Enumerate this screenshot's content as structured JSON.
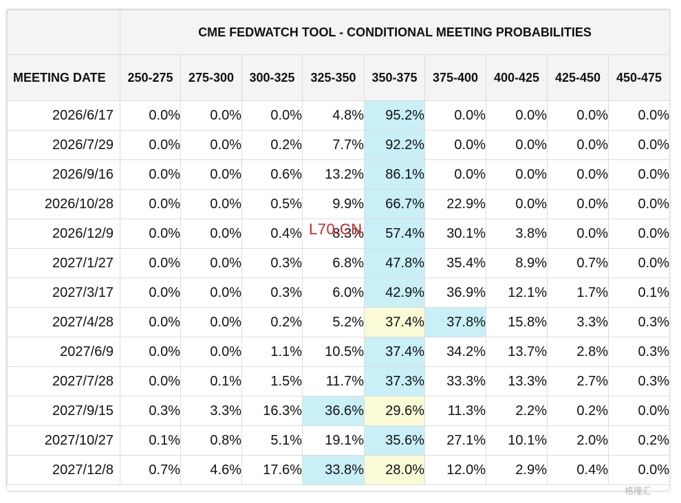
{
  "chart_data": {
    "type": "table",
    "title": "CME FEDWATCH TOOL - CONDITIONAL MEETING PROBABILITIES",
    "row_header_label": "MEETING DATE",
    "columns": [
      "250-275",
      "275-300",
      "300-325",
      "325-350",
      "350-375",
      "375-400",
      "400-425",
      "425-450",
      "450-475"
    ],
    "rows": [
      {
        "date": "2026/6/17",
        "values": [
          "0.0%",
          "0.0%",
          "0.0%",
          "4.8%",
          "95.2%",
          "0.0%",
          "0.0%",
          "0.0%",
          "0.0%"
        ],
        "highlight": {
          "4": "blue"
        }
      },
      {
        "date": "2026/7/29",
        "values": [
          "0.0%",
          "0.0%",
          "0.2%",
          "7.7%",
          "92.2%",
          "0.0%",
          "0.0%",
          "0.0%",
          "0.0%"
        ],
        "highlight": {
          "4": "blue"
        }
      },
      {
        "date": "2026/9/16",
        "values": [
          "0.0%",
          "0.0%",
          "0.6%",
          "13.2%",
          "86.1%",
          "0.0%",
          "0.0%",
          "0.0%",
          "0.0%"
        ],
        "highlight": {
          "4": "blue"
        }
      },
      {
        "date": "2026/10/28",
        "values": [
          "0.0%",
          "0.0%",
          "0.5%",
          "9.9%",
          "66.7%",
          "22.9%",
          "0.0%",
          "0.0%",
          "0.0%"
        ],
        "highlight": {
          "4": "blue"
        }
      },
      {
        "date": "2026/12/9",
        "values": [
          "0.0%",
          "0.0%",
          "0.4%",
          "8.3%",
          "57.4%",
          "30.1%",
          "3.8%",
          "0.0%",
          "0.0%"
        ],
        "highlight": {
          "4": "blue"
        }
      },
      {
        "date": "2027/1/27",
        "values": [
          "0.0%",
          "0.0%",
          "0.3%",
          "6.8%",
          "47.8%",
          "35.4%",
          "8.9%",
          "0.7%",
          "0.0%"
        ],
        "highlight": {
          "4": "blue"
        }
      },
      {
        "date": "2027/3/17",
        "values": [
          "0.0%",
          "0.0%",
          "0.3%",
          "6.0%",
          "42.9%",
          "36.9%",
          "12.1%",
          "1.7%",
          "0.1%"
        ],
        "highlight": {
          "4": "blue"
        }
      },
      {
        "date": "2027/4/28",
        "values": [
          "0.0%",
          "0.0%",
          "0.2%",
          "5.2%",
          "37.4%",
          "37.8%",
          "15.8%",
          "3.3%",
          "0.3%"
        ],
        "highlight": {
          "4": "yellow",
          "5": "blue"
        }
      },
      {
        "date": "2027/6/9",
        "values": [
          "0.0%",
          "0.0%",
          "1.1%",
          "10.5%",
          "37.4%",
          "34.2%",
          "13.7%",
          "2.8%",
          "0.3%"
        ],
        "highlight": {
          "4": "blue"
        }
      },
      {
        "date": "2027/7/28",
        "values": [
          "0.0%",
          "0.1%",
          "1.5%",
          "11.7%",
          "37.3%",
          "33.3%",
          "13.3%",
          "2.7%",
          "0.3%"
        ],
        "highlight": {
          "4": "blue"
        }
      },
      {
        "date": "2027/9/15",
        "values": [
          "0.3%",
          "3.3%",
          "16.3%",
          "36.6%",
          "29.6%",
          "11.3%",
          "2.2%",
          "0.2%",
          "0.0%"
        ],
        "highlight": {
          "3": "blue",
          "4": "yellow"
        }
      },
      {
        "date": "2027/10/27",
        "values": [
          "0.1%",
          "0.8%",
          "5.1%",
          "19.1%",
          "35.6%",
          "27.1%",
          "10.1%",
          "2.0%",
          "0.2%"
        ],
        "highlight": {
          "4": "blue"
        }
      },
      {
        "date": "2027/12/8",
        "values": [
          "0.7%",
          "4.6%",
          "17.6%",
          "33.8%",
          "28.0%",
          "12.0%",
          "2.9%",
          "0.4%",
          "0.0%"
        ],
        "highlight": {
          "3": "blue",
          "4": "yellow"
        }
      }
    ],
    "colors": {
      "highlight_blue": "#c9eff7",
      "highlight_yellow": "#fafad7",
      "header_bg": "#f4f4f4",
      "grid": "#dcdcdc"
    }
  },
  "watermarks": {
    "overlay_text": "L70.CN",
    "logo_text": "格隆汇"
  }
}
